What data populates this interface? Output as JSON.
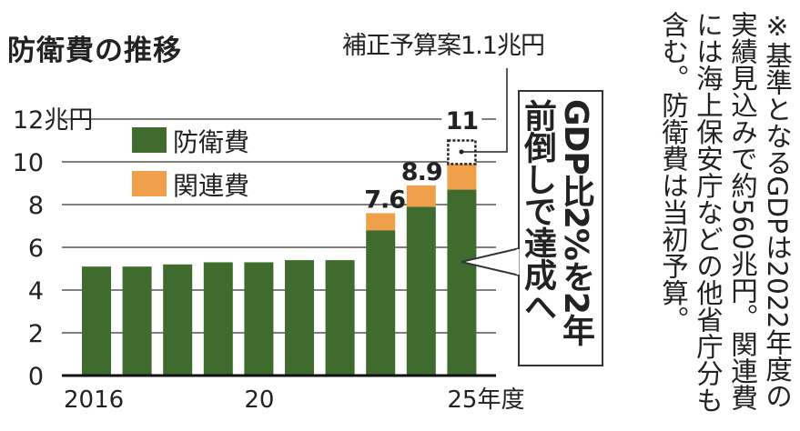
{
  "title": "防衛費の推移",
  "supplementary_label": "補正予算案1.1兆円",
  "callout": "GDP比2%を2年前倒しで達成へ",
  "note": "※基準となるGDPは2022年度の実績見込みで約560兆円。関連費には海上保安庁などの他省庁分も含む。防衛費は当初予算。",
  "colors": {
    "defense": "#3f6b2f",
    "related": "#f0a04b",
    "grid": "#555555"
  },
  "chart_data": {
    "type": "bar",
    "stacked": true,
    "title": "防衛費の推移",
    "ylabel": "兆円",
    "ylim": [
      0,
      12
    ],
    "yticks": [
      0,
      2,
      4,
      6,
      8,
      10,
      12
    ],
    "ytick_labels": [
      "0",
      "2",
      "4",
      "6",
      "8",
      "10",
      "12兆円"
    ],
    "categories": [
      "2016",
      "2017",
      "2018",
      "2019",
      "2020",
      "2021",
      "2022",
      "2023",
      "2024",
      "2025"
    ],
    "xtick_labels": [
      {
        "category": "2016",
        "label": "2016"
      },
      {
        "category": "2020",
        "label": "20"
      },
      {
        "category": "2025",
        "label": "25年度"
      }
    ],
    "series": [
      {
        "name": "防衛費",
        "values": [
          5.1,
          5.1,
          5.2,
          5.3,
          5.3,
          5.4,
          5.4,
          6.8,
          7.9,
          8.7
        ]
      },
      {
        "name": "関連費",
        "values": [
          0,
          0,
          0,
          0,
          0,
          0,
          0,
          0.8,
          1.0,
          1.2
        ]
      },
      {
        "name": "補正予算案",
        "values": [
          0,
          0,
          0,
          0,
          0,
          0,
          0,
          0,
          0,
          1.1
        ],
        "style": "dotted"
      }
    ],
    "data_labels": [
      {
        "category": "2023",
        "label": "7.6"
      },
      {
        "category": "2024",
        "label": "8.9"
      },
      {
        "category": "2025",
        "label": "11"
      }
    ],
    "legend": [
      "防衛費",
      "関連費"
    ],
    "legend_position": "top-left",
    "grid": true
  }
}
